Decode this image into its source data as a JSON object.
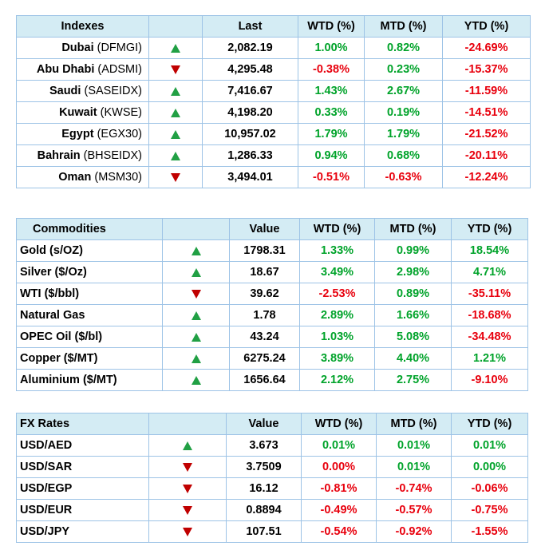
{
  "indexes": {
    "headers": [
      "Indexes",
      "",
      "Last",
      "WTD (%)",
      "MTD (%)",
      "YTD (%)"
    ],
    "rows": [
      {
        "name": "Dubai",
        "code": "(DFMGI)",
        "dir": "up",
        "value": "2,082.19",
        "wtd": "1.00%",
        "mtd": "0.82%",
        "ytd": "-24.69%"
      },
      {
        "name": "Abu Dhabi",
        "code": "(ADSMI)",
        "dir": "down",
        "value": "4,295.48",
        "wtd": "-0.38%",
        "mtd": "0.23%",
        "ytd": "-15.37%"
      },
      {
        "name": "Saudi",
        "code": "(SASEIDX)",
        "dir": "up",
        "value": "7,416.67",
        "wtd": "1.43%",
        "mtd": "2.67%",
        "ytd": "-11.59%"
      },
      {
        "name": "Kuwait",
        "code": "(KWSE)",
        "dir": "up",
        "value": "4,198.20",
        "wtd": "0.33%",
        "mtd": "0.19%",
        "ytd": "-14.51%"
      },
      {
        "name": "Egypt",
        "code": "(EGX30)",
        "dir": "up",
        "value": "10,957.02",
        "wtd": "1.79%",
        "mtd": "1.79%",
        "ytd": "-21.52%"
      },
      {
        "name": "Bahrain",
        "code": "(BHSEIDX)",
        "dir": "up",
        "value": "1,286.33",
        "wtd": "0.94%",
        "mtd": "0.68%",
        "ytd": "-20.11%"
      },
      {
        "name": "Oman",
        "code": "(MSM30)",
        "dir": "down",
        "value": "3,494.01",
        "wtd": "-0.51%",
        "mtd": "-0.63%",
        "ytd": "-12.24%"
      }
    ]
  },
  "commodities": {
    "headers": [
      "Commodities",
      "",
      "Value",
      "WTD (%)",
      "MTD (%)",
      "YTD (%)"
    ],
    "rows": [
      {
        "name": "Gold (s/OZ)",
        "dir": "up",
        "value": "1798.31",
        "wtd": "1.33%",
        "mtd": "0.99%",
        "ytd": "18.54%"
      },
      {
        "name": "Silver ($/Oz)",
        "dir": "up",
        "value": "18.67",
        "wtd": "3.49%",
        "mtd": "2.98%",
        "ytd": "4.71%"
      },
      {
        "name": "WTI ($/bbl)",
        "dir": "down",
        "value": "39.62",
        "wtd": "-2.53%",
        "mtd": "0.89%",
        "ytd": "-35.11%"
      },
      {
        "name": "Natural Gas",
        "dir": "up",
        "value": "1.78",
        "wtd": "2.89%",
        "mtd": "1.66%",
        "ytd": "-18.68%"
      },
      {
        "name": "OPEC Oil ($/bl)",
        "dir": "up",
        "value": "43.24",
        "wtd": "1.03%",
        "mtd": "5.08%",
        "ytd": "-34.48%"
      },
      {
        "name": "Copper ($/MT)",
        "dir": "up",
        "value": "6275.24",
        "wtd": "3.89%",
        "mtd": "4.40%",
        "ytd": "1.21%"
      },
      {
        "name": "Aluminium ($/MT)",
        "dir": "up",
        "value": "1656.64",
        "wtd": "2.12%",
        "mtd": "2.75%",
        "ytd": "-9.10%"
      }
    ]
  },
  "fx": {
    "headers": [
      "FX Rates",
      "",
      "Value",
      "WTD (%)",
      "MTD (%)",
      "YTD (%)"
    ],
    "rows": [
      {
        "name": "USD/AED",
        "dir": "up",
        "value": "3.673",
        "wtd": "0.01%",
        "mtd": "0.01%",
        "ytd": "0.01%"
      },
      {
        "name": "USD/SAR",
        "dir": "down",
        "value": "3.7509",
        "wtd": "0.00%",
        "mtd": "0.01%",
        "ytd": "0.00%"
      },
      {
        "name": "USD/EGP",
        "dir": "down",
        "value": "16.12",
        "wtd": "-0.81%",
        "mtd": "-0.74%",
        "ytd": "-0.06%"
      },
      {
        "name": "USD/EUR",
        "dir": "down",
        "value": "0.8894",
        "wtd": "-0.49%",
        "mtd": "-0.57%",
        "ytd": "-0.75%"
      },
      {
        "name": "USD/JPY",
        "dir": "down",
        "value": "107.51",
        "wtd": "-0.54%",
        "mtd": "-0.92%",
        "ytd": "-1.55%"
      }
    ]
  },
  "colors": {
    "header_bg": "#d4ecf4",
    "border": "#9dc3e6",
    "positive": "#00a32a",
    "negative": "#e8000d",
    "up_arrow": "#21a044",
    "down_arrow": "#c00000"
  }
}
